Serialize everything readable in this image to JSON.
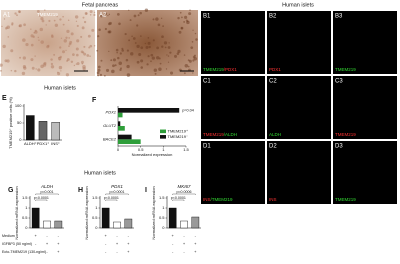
{
  "figure": {
    "fetal_title": "Fetal pancreas",
    "islets_title_top": "Human islets",
    "islets_title_mid": "Human islets",
    "islets_title_bottom": "Human islets",
    "panels_a": [
      {
        "label": "A1",
        "caption": "TMEM219"
      },
      {
        "label": "A2"
      }
    ],
    "panels_b": [
      {
        "label": "B1",
        "caption": [
          {
            "text": "TMEM219",
            "color": "#33dd33"
          },
          {
            "text": "/PDX1",
            "color": "#ff3333"
          }
        ]
      },
      {
        "label": "B2",
        "caption": [
          {
            "text": "PDX1",
            "color": "#ff3333"
          }
        ]
      },
      {
        "label": "B3",
        "caption": [
          {
            "text": "TMEM219",
            "color": "#33dd33"
          }
        ]
      },
      {
        "label": "C1",
        "caption": [
          {
            "text": "TMEM219",
            "color": "#ff3333"
          },
          {
            "text": "/ALDH",
            "color": "#33dd33"
          }
        ]
      },
      {
        "label": "C2",
        "caption": [
          {
            "text": "ALDH",
            "color": "#33dd33"
          }
        ]
      },
      {
        "label": "C3",
        "caption": [
          {
            "text": "TMEM219",
            "color": "#ff3333"
          }
        ]
      },
      {
        "label": "D1",
        "caption": [
          {
            "text": "INS",
            "color": "#ff3333"
          },
          {
            "text": "/TMEM219",
            "color": "#33dd33"
          }
        ]
      },
      {
        "label": "D2",
        "caption": [
          {
            "text": "INS",
            "color": "#ff3333"
          }
        ]
      },
      {
        "label": "D3",
        "caption": [
          {
            "text": "TMEM219",
            "color": "#33dd33"
          }
        ]
      }
    ],
    "treatment": {
      "rows": [
        {
          "label": "Medium",
          "marks": [
            "+",
            "-",
            "-"
          ]
        },
        {
          "label": "IGFBP3 (50 ng/ml)",
          "marks": [
            "-",
            "+",
            "+"
          ]
        },
        {
          "label": "Ecto-TMEM219 (130 ng/ml)",
          "marks": [
            "-",
            "-",
            "+"
          ]
        }
      ]
    }
  },
  "chart_data": [
    {
      "type": "bar",
      "panel": "E",
      "ylabel": "TMEM219⁺ positive cells (%)",
      "categories": [
        "ALDH⁺",
        "PDX1⁺",
        "INS⁺"
      ],
      "values": [
        72,
        55,
        52
      ],
      "colors": [
        "#111111",
        "#666666",
        "#bbbbbb"
      ],
      "ylim": [
        0,
        100
      ],
      "yticks": [
        0,
        50,
        100
      ]
    },
    {
      "type": "hbar",
      "panel": "F",
      "xlabel": "Normalized expression",
      "categories": [
        "PDX1",
        "GLUT2",
        "BACE2"
      ],
      "series": [
        {
          "name": "TMEM219⁺",
          "color": "#2e9e3a",
          "values": [
            0.1,
            0.15,
            0.5
          ]
        },
        {
          "name": "TMEM219⁻",
          "color": "#111111",
          "values": [
            1.35,
            0.05,
            0.3
          ]
        }
      ],
      "annotations": [
        "p=0.04"
      ],
      "xlim": [
        0,
        1.5
      ],
      "xticks": [
        0,
        0.5,
        1,
        1.5
      ]
    },
    {
      "type": "bar",
      "panel": "G",
      "title": "ALDH",
      "ylabel": "Normalized mRNA expression",
      "categories": [
        null,
        null,
        null
      ],
      "values": [
        1,
        0.35,
        0.35
      ],
      "colors": [
        "#111111",
        "#ffffff",
        "#999999"
      ],
      "annotations": [
        "p=0.001",
        "p<0.0001"
      ],
      "ylim": [
        0,
        1.5
      ],
      "yticks": [
        0,
        0.5,
        1,
        1.5
      ]
    },
    {
      "type": "bar",
      "panel": "H",
      "title": "PDX1",
      "ylabel": "Normalized mRNA expression",
      "categories": [
        null,
        null,
        null
      ],
      "values": [
        1,
        0.3,
        0.45
      ],
      "colors": [
        "#111111",
        "#ffffff",
        "#999999"
      ],
      "annotations": [
        "p=0.0001",
        "p<0.0001"
      ],
      "ylim": [
        0,
        1.5
      ],
      "yticks": [
        0,
        0.5,
        1,
        1.5
      ]
    },
    {
      "type": "bar",
      "panel": "I",
      "title": "MKI67",
      "ylabel": "Normalized mRNA expression",
      "categories": [
        null,
        null,
        null
      ],
      "values": [
        1,
        0.35,
        0.55
      ],
      "colors": [
        "#111111",
        "#ffffff",
        "#999999"
      ],
      "annotations": [
        "p=0.0006",
        "p<0.0001"
      ],
      "ylim": [
        0,
        1.5
      ],
      "yticks": [
        0,
        0.5,
        1,
        1.5
      ]
    }
  ]
}
